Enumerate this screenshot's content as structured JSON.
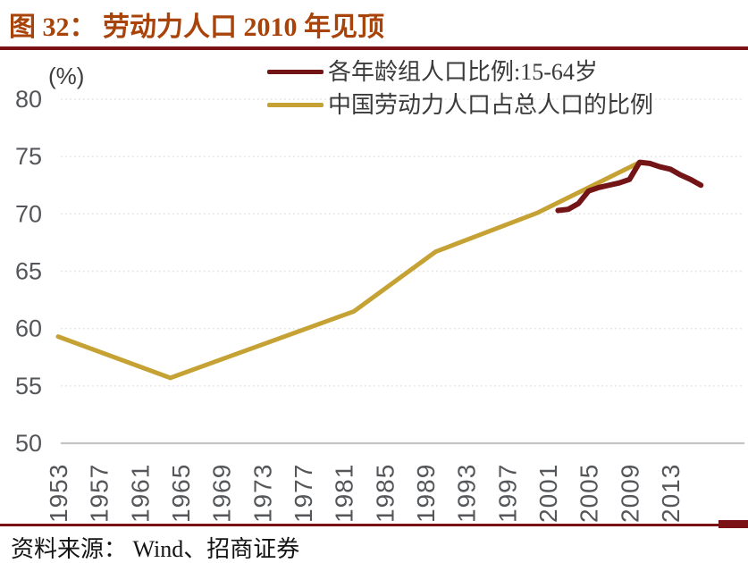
{
  "title": {
    "text": "图 32：  劳动力人口 2010 年见顶"
  },
  "colors": {
    "title_text": "#a8430a",
    "title_rule": "#7a1215",
    "dark_red_series": "#731417",
    "gold_series": "#c5a233",
    "gridline": "#e0e0e0",
    "axis_line": "#c3c3c3",
    "tick_text": "#54565a"
  },
  "axis": {
    "unit_label": "(%)"
  },
  "legend": [
    {
      "label": "各年龄组人口比例:15-64岁",
      "color": "#731417"
    },
    {
      "label": "中国劳动力人口占总人口的比例",
      "color": "#c5a233"
    }
  ],
  "footer": {
    "source_text": "资料来源： Wind、招商证券"
  },
  "chart_data": {
    "type": "line",
    "title": "劳动力人口 2010 年见顶",
    "xlabel": "",
    "ylabel": "(%)",
    "ylim": [
      50,
      80
    ],
    "xlim": [
      1953,
      2016
    ],
    "yticks": [
      50,
      55,
      60,
      65,
      70,
      75,
      80
    ],
    "xticks": [
      1953,
      1957,
      1961,
      1965,
      1969,
      1973,
      1977,
      1981,
      1985,
      1989,
      1993,
      1997,
      2001,
      2005,
      2009,
      2013
    ],
    "grid": "horizontal-dotted",
    "legend_position": "top-center",
    "series": [
      {
        "name": "各年龄组人口比例:15-64岁",
        "color": "#731417",
        "x": [
          2002,
          2003,
          2004,
          2005,
          2006,
          2007,
          2008,
          2009,
          2010,
          2011,
          2012,
          2013,
          2014,
          2015,
          2016
        ],
        "values": [
          70.3,
          70.4,
          70.9,
          72.0,
          72.3,
          72.5,
          72.7,
          73.0,
          74.5,
          74.4,
          74.1,
          73.9,
          73.4,
          73.0,
          72.5
        ]
      },
      {
        "name": "中国劳动力人口占总人口的比例",
        "color": "#c5a233",
        "x": [
          1953,
          1964,
          1982,
          1990,
          2000,
          2010
        ],
        "values": [
          59.3,
          55.7,
          61.5,
          66.7,
          70.1,
          74.5
        ]
      }
    ]
  }
}
